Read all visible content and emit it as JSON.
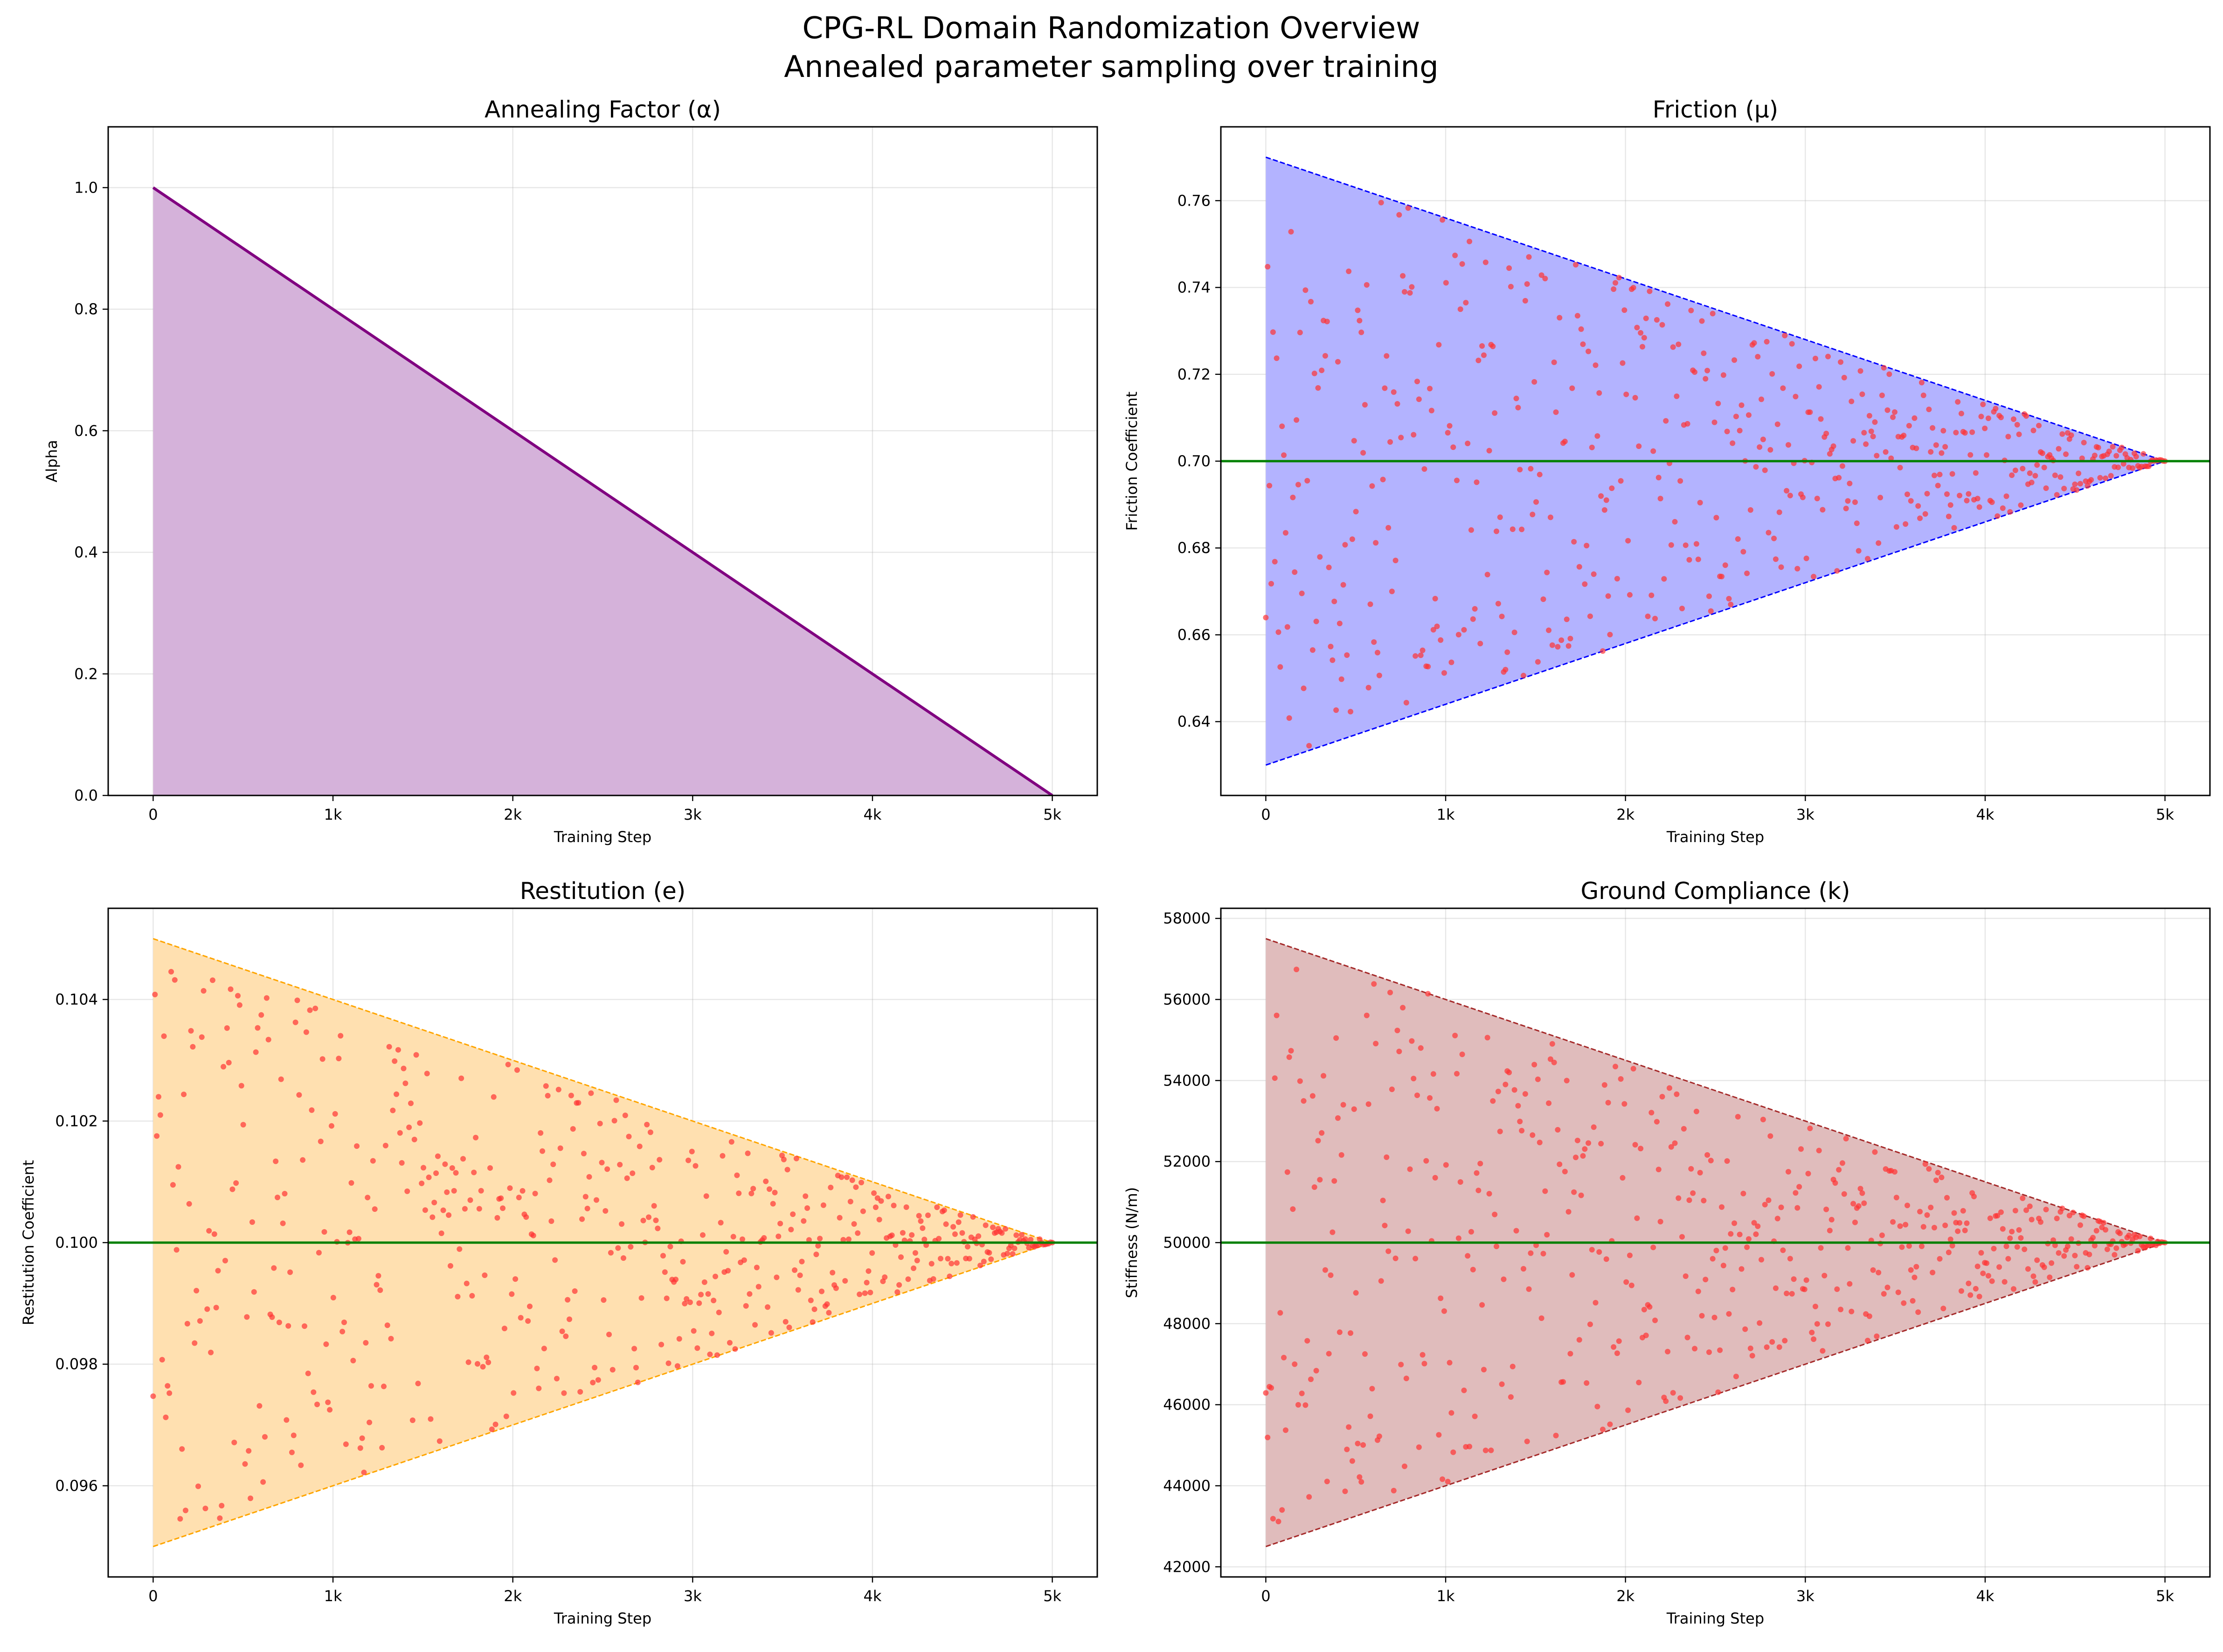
{
  "figure": {
    "title_line1": "CPG-RL Domain Randomization Overview",
    "title_line2": "Annealed parameter sampling over training"
  },
  "colors": {
    "alpha_line": "#800080",
    "alpha_fill": "#d5b2da",
    "friction_fill": "#b3b3ff",
    "friction_bound": "#0000ff",
    "restitution_fill": "#ffe0b0",
    "restitution_bound": "#ffa500",
    "compliance_fill": "#e0bcbc",
    "compliance_bound": "#a52a2a",
    "nominal_line": "#008000",
    "sample_point": "#ff3333"
  },
  "chart_data": [
    {
      "type": "area",
      "title": "Annealing Factor (α)",
      "xlabel": "Training Step",
      "ylabel": "Alpha",
      "xlim": [
        -250,
        5250
      ],
      "ylim": [
        0,
        1.1
      ],
      "xticks": [
        0,
        1000,
        2000,
        3000,
        4000,
        5000
      ],
      "xtick_labels": [
        "0",
        "1k",
        "2k",
        "3k",
        "4k",
        "5k"
      ],
      "yticks": [
        0,
        0.2,
        0.4,
        0.6,
        0.8,
        1.0
      ],
      "ytick_labels": [
        "0.0",
        "0.2",
        "0.4",
        "0.6",
        "0.8",
        "1.0"
      ],
      "grid": true,
      "series": [
        {
          "x": [
            0,
            5000
          ],
          "y": [
            1.0,
            0.0
          ]
        }
      ]
    },
    {
      "type": "scatter",
      "title": "Friction (μ)",
      "xlabel": "Training Step",
      "ylabel": "Friction Coefficient",
      "xlim": [
        -250,
        5250
      ],
      "ylim": [
        0.623,
        0.777
      ],
      "xticks": [
        0,
        1000,
        2000,
        3000,
        4000,
        5000
      ],
      "xtick_labels": [
        "0",
        "1k",
        "2k",
        "3k",
        "4k",
        "5k"
      ],
      "yticks": [
        0.64,
        0.66,
        0.68,
        0.7,
        0.72,
        0.74,
        0.76
      ],
      "ytick_labels": [
        "0.64",
        "0.66",
        "0.68",
        "0.70",
        "0.72",
        "0.74",
        "0.76"
      ],
      "grid": true,
      "nominal": 0.7,
      "range_start": [
        0.63,
        0.77
      ],
      "range_end_step": 5000,
      "sample_count": 500,
      "seed": 17
    },
    {
      "type": "scatter",
      "title": "Restitution (e)",
      "xlabel": "Training Step",
      "ylabel": "Restitution Coefficient",
      "xlim": [
        -250,
        5250
      ],
      "ylim": [
        0.0945,
        0.1055
      ],
      "xticks": [
        0,
        1000,
        2000,
        3000,
        4000,
        5000
      ],
      "xtick_labels": [
        "0",
        "1k",
        "2k",
        "3k",
        "4k",
        "5k"
      ],
      "yticks": [
        0.096,
        0.098,
        0.1,
        0.102,
        0.104
      ],
      "ytick_labels": [
        "0.096",
        "0.098",
        "0.100",
        "0.102",
        "0.104"
      ],
      "grid": true,
      "nominal": 0.1,
      "range_start": [
        0.095,
        0.105
      ],
      "range_end_step": 5000,
      "sample_count": 500,
      "seed": 29
    },
    {
      "type": "scatter",
      "title": "Ground Compliance (k)",
      "xlabel": "Training Step",
      "ylabel": "Stiffness (N/m)",
      "xlim": [
        -250,
        5250
      ],
      "ylim": [
        41750,
        58250
      ],
      "xticks": [
        0,
        1000,
        2000,
        3000,
        4000,
        5000
      ],
      "xtick_labels": [
        "0",
        "1k",
        "2k",
        "3k",
        "4k",
        "5k"
      ],
      "yticks": [
        42000,
        44000,
        46000,
        48000,
        50000,
        52000,
        54000,
        56000,
        58000
      ],
      "ytick_labels": [
        "42000",
        "44000",
        "46000",
        "48000",
        "50000",
        "52000",
        "54000",
        "56000",
        "58000"
      ],
      "grid": true,
      "nominal": 50000,
      "range_start": [
        42500,
        57500
      ],
      "range_end_step": 5000,
      "sample_count": 500,
      "seed": 43
    }
  ]
}
